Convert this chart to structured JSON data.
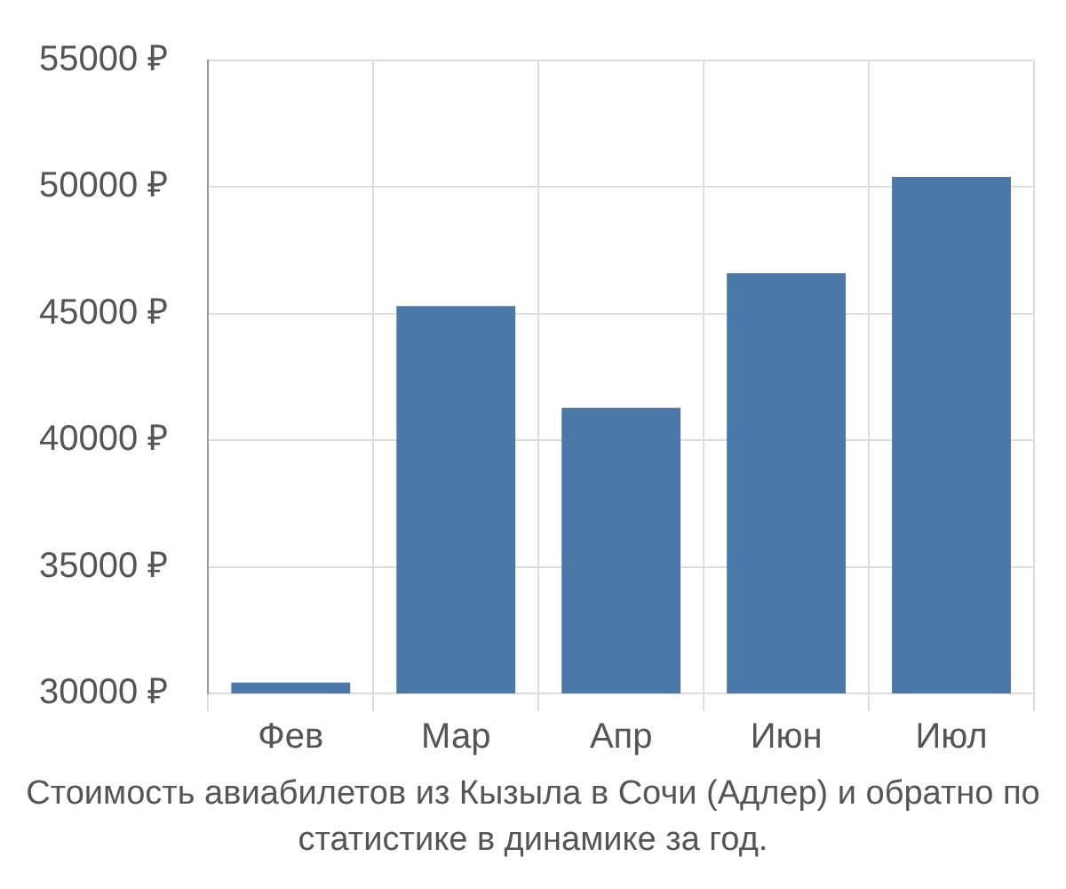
{
  "chart_data": {
    "type": "bar",
    "categories": [
      "Фев",
      "Мар",
      "Апр",
      "Июн",
      "Июл"
    ],
    "values": [
      30430,
      45300,
      41280,
      46600,
      50400
    ],
    "color": "#4a78a8",
    "ylim": [
      30000,
      55000
    ],
    "yticks": [
      {
        "value": 30000,
        "label": "30000 ₽"
      },
      {
        "value": 35000,
        "label": "35000 ₽"
      },
      {
        "value": 40000,
        "label": "40000 ₽"
      },
      {
        "value": 45000,
        "label": "45000 ₽"
      },
      {
        "value": 50000,
        "label": "50000 ₽"
      },
      {
        "value": 55000,
        "label": "55000 ₽"
      }
    ],
    "grid": true,
    "legend": false,
    "annotations": [
      "Стоимость авиабилетов из Кызыла в Сочи (Адлер) и обратно по статистике в динамике за год."
    ]
  }
}
